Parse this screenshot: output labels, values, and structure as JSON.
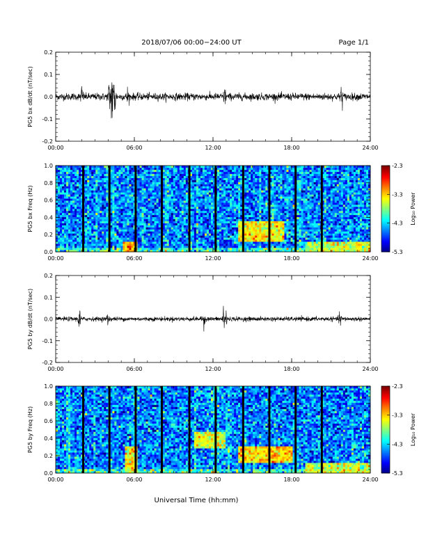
{
  "header": {
    "title": "2018/07/06  00:00−24:00 UT",
    "page": "Page 1/1"
  },
  "x_axis_title": "Universal Time (hh:mm)",
  "chart_data": [
    {
      "type": "line",
      "ylabel": "PG5 bx dB/dt (nT/sec)",
      "xlim": [
        0,
        24
      ],
      "ylim": [
        -0.2,
        0.2
      ],
      "x_tick_labels": [
        "00:00",
        "06:00",
        "12:00",
        "18:00",
        "24:00"
      ],
      "y_tick_labels": [
        "0.2",
        "0.1",
        "0.0",
        "-0.1",
        "-0.2"
      ],
      "noise_amplitude": 0.008,
      "bursts": [
        {
          "t": 2.0,
          "amp": 0.025
        },
        {
          "t": 4.1,
          "amp": 0.04
        },
        {
          "t": 4.3,
          "amp": 0.08
        },
        {
          "t": 4.5,
          "amp": 0.05
        },
        {
          "t": 5.5,
          "amp": 0.02
        },
        {
          "t": 12.9,
          "amp": 0.02
        },
        {
          "t": 21.8,
          "amp": 0.03
        }
      ],
      "grid": false
    },
    {
      "type": "heatmap",
      "ylabel": "PG5 bx Freq (Hz)",
      "xlim": [
        0,
        24
      ],
      "ylim": [
        0,
        1
      ],
      "x_tick_labels": [
        "00:00",
        "06:00",
        "12:00",
        "18:00",
        "24:00"
      ],
      "y_tick_labels": [
        "1.0",
        "0.8",
        "0.6",
        "0.4",
        "0.2",
        "0.0"
      ],
      "colorbar": {
        "label": "Log₁₀ Power",
        "range": [
          -5.3,
          -2.3
        ],
        "tick_labels": [
          "-2.3",
          "-3.3",
          "-4.3",
          "-5.3"
        ]
      },
      "gap_times": [
        2.1,
        4.1,
        6.1,
        8.1,
        10.2,
        12.2,
        14.3,
        16.3,
        18.3,
        20.3
      ],
      "enhanced_regions": [
        {
          "t0": 14.0,
          "t1": 17.5,
          "f0": 0.12,
          "f1": 0.35,
          "level": -3.4
        },
        {
          "t0": 19.0,
          "t1": 24.0,
          "f0": 0.0,
          "f1": 0.12,
          "level": -3.6
        },
        {
          "t0": 5.2,
          "t1": 6.2,
          "f0": 0.0,
          "f1": 0.12,
          "level": -3.2
        }
      ]
    },
    {
      "type": "line",
      "ylabel": "PG5 by dB/dt (nT/sec)",
      "xlim": [
        0,
        24
      ],
      "ylim": [
        -0.2,
        0.2
      ],
      "x_tick_labels": [
        "00:00",
        "06:00",
        "12:00",
        "18:00",
        "24:00"
      ],
      "y_tick_labels": [
        "0.2",
        "0.1",
        "0.0",
        "-0.1",
        "-0.2"
      ],
      "noise_amplitude": 0.005,
      "bursts": [
        {
          "t": 1.8,
          "amp": 0.03
        },
        {
          "t": 4.0,
          "amp": 0.015
        },
        {
          "t": 11.3,
          "amp": 0.02
        },
        {
          "t": 12.8,
          "amp": 0.035
        },
        {
          "t": 13.0,
          "amp": 0.025
        },
        {
          "t": 21.7,
          "amp": 0.02
        }
      ],
      "grid": false
    },
    {
      "type": "heatmap",
      "ylabel": "PG5 by Freq (Hz)",
      "xlim": [
        0,
        24
      ],
      "ylim": [
        0,
        1
      ],
      "x_tick_labels": [
        "00:00",
        "06:00",
        "12:00",
        "18:00",
        "24:00"
      ],
      "y_tick_labels": [
        "1.0",
        "0.8",
        "0.6",
        "0.4",
        "0.2",
        "0.0"
      ],
      "colorbar": {
        "label": "Log₁₀ Power",
        "range": [
          -5.3,
          -2.3
        ],
        "tick_labels": [
          "-2.3",
          "-3.3",
          "-4.3",
          "-5.3"
        ]
      },
      "gap_times": [
        2.1,
        4.1,
        6.1,
        8.1,
        10.2,
        12.2,
        14.3,
        16.3,
        18.3,
        20.3
      ],
      "enhanced_regions": [
        {
          "t0": 10.5,
          "t1": 13.0,
          "f0": 0.28,
          "f1": 0.48,
          "level": -3.5
        },
        {
          "t0": 14.0,
          "t1": 18.0,
          "f0": 0.12,
          "f1": 0.3,
          "level": -3.3
        },
        {
          "t0": 5.3,
          "t1": 6.2,
          "f0": 0.0,
          "f1": 0.3,
          "level": -3.4
        },
        {
          "t0": 19.0,
          "t1": 24.0,
          "f0": 0.0,
          "f1": 0.12,
          "level": -3.6
        }
      ]
    }
  ]
}
